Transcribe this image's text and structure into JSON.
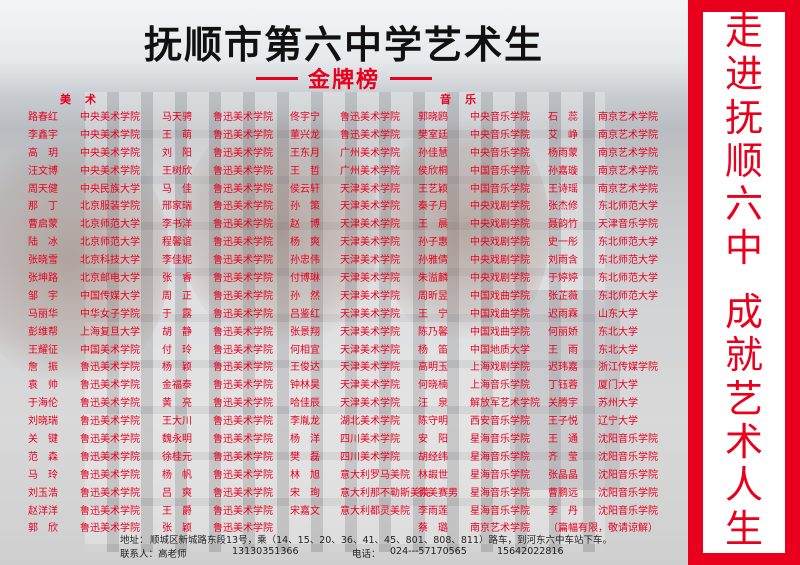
{
  "title": "抚顺市第六中学艺术生",
  "subtitle": "金牌榜",
  "sections": {
    "art": "美术",
    "music": "音乐"
  },
  "side_slogan": [
    "走",
    "进",
    "抚",
    "顺",
    "六",
    "中",
    "",
    "成",
    "就",
    "艺",
    "术",
    "人",
    "生"
  ],
  "rows": [
    [
      "路春红",
      "中央美术学院",
      "马天骋",
      "鲁迅美术学院",
      "佟宇宁",
      "鲁迅美术学院",
      "郭晓鸥",
      "中央音乐学院",
      "石　蕊",
      "南京艺术学院"
    ],
    [
      "李鑫宇",
      "中央美术学院",
      "王　萌",
      "鲁迅美术学院",
      "董兴龙",
      "鲁迅美术学院",
      "樊室廷",
      "中央音乐学院",
      "艾　峥",
      "南京艺术学院"
    ],
    [
      "高　玥",
      "中央美术学院",
      "刘　阳",
      "鲁迅美术学院",
      "王东月",
      "广州美术学院",
      "孙佳慧",
      "中央音乐学院",
      "杨雨蒙",
      "南京艺术学院"
    ],
    [
      "汪文博",
      "中央美术学院",
      "王树欣",
      "鲁迅美术学院",
      "王　哲",
      "广州美术学院",
      "侯欣桐",
      "中国音乐学院",
      "孙嘉璇",
      "南京艺术学院"
    ],
    [
      "周天健",
      "中央民族大学",
      "马　佳",
      "鲁迅美术学院",
      "侯云轩",
      "天津美术学院",
      "王艺颖",
      "中国音乐学院",
      "王诗瑶",
      "南京艺术学院"
    ],
    [
      "那　丁",
      "北京服装学院",
      "邢家瑞",
      "鲁迅美术学院",
      "孙　策",
      "天津美术学院",
      "秦子月",
      "中央戏剧学院",
      "张杰修",
      "东北师范大学"
    ],
    [
      "曹启蒙",
      "北京师范大学",
      "李书洋",
      "鲁迅美术学院",
      "赵　博",
      "天津美术学院",
      "王　晨",
      "中央戏剧学院",
      "聂韵竹",
      "天津音乐学院"
    ],
    [
      "陆　冰",
      "北京师范大学",
      "程馨谊",
      "鲁迅美术学院",
      "杨　爽",
      "天津美术学院",
      "孙子惠",
      "中央戏剧学院",
      "史一彤",
      "东北师范大学"
    ],
    [
      "张晓雪",
      "北京科技大学",
      "李佳妮",
      "鲁迅美术学院",
      "孙忠伟",
      "天津美术学院",
      "孙雅倩",
      "中央戏剧学院",
      "刘雨含",
      "东北师范大学"
    ],
    [
      "张坤路",
      "北京邮电大学",
      "张　睿",
      "鲁迅美术学院",
      "付博琳",
      "天津美术学院",
      "朱溢麟",
      "中央戏剧学院",
      "于婷婷",
      "东北师范大学"
    ],
    [
      "邹　宇",
      "中国传媒大学",
      "周　正",
      "鲁迅美术学院",
      "孙　然",
      "天津美术学院",
      "周昕昱",
      "中国戏曲学院",
      "张芷薇",
      "东北师范大学"
    ],
    [
      "马丽华",
      "中华女子学院",
      "于　露",
      "鲁迅美术学院",
      "吕鉴红",
      "天津美术学院",
      "王　宁",
      "中国戏曲学院",
      "迟雨霖",
      "山东大学"
    ],
    [
      "彭维帮",
      "上海复旦大学",
      "胡　静",
      "鲁迅美术学院",
      "张景翔",
      "天津美术学院",
      "陈乃馨",
      "中国戏曲学院",
      "何丽娇",
      "东北大学"
    ],
    [
      "王耀征",
      "中国美术学院",
      "付　玲",
      "鲁迅美术学院",
      "何相宜",
      "天津美术学院",
      "杨　笛",
      "中国地质大学",
      "王　雨",
      "东北大学"
    ],
    [
      "詹　振",
      "鲁迅美术学院",
      "杨　颖",
      "鲁迅美术学院",
      "王俊达",
      "天津美术学院",
      "高明玉",
      "上海戏剧学院",
      "迟玮嘉",
      "浙江传媒学院"
    ],
    [
      "袁　帅",
      "鲁迅美术学院",
      "金福泰",
      "鲁迅美术学院",
      "钟林昊",
      "天津美术学院",
      "何晓楠",
      "上海音乐学院",
      "丁钰蓉",
      "厦门大学"
    ],
    [
      "于海伦",
      "鲁迅美术学院",
      "黄　亮",
      "鲁迅美术学院",
      "哈佳辰",
      "天津美术学院",
      "汪　泉",
      "解放军艺术学院",
      "关腾宇",
      "苏州大学"
    ],
    [
      "刘晓瑞",
      "鲁迅美术学院",
      "王大川",
      "鲁迅美术学院",
      "李胤龙",
      "湖北美术学院",
      "陈守明",
      "西安音乐学院",
      "王子悦",
      "辽宁大学"
    ],
    [
      "关　键",
      "鲁迅美术学院",
      "魏永明",
      "鲁迅美术学院",
      "杨　洋",
      "四川美术学院",
      "安　阳",
      "星海音乐学院",
      "王　通",
      "沈阳音乐学院"
    ],
    [
      "范　森",
      "鲁迅美术学院",
      "徐桂元",
      "鲁迅美术学院",
      "樊　磊",
      "四川美术学院",
      "胡经纬",
      "星海音乐学院",
      "齐　莹",
      "沈阳音乐学院"
    ],
    [
      "马　玲",
      "鲁迅美术学院",
      "杨　帆",
      "鲁迅美术学院",
      "林　旭",
      "意大利罗马美院",
      "林嘏世",
      "星海音乐学院",
      "张晶晶",
      "沈阳音乐学院"
    ],
    [
      "刘玉浩",
      "鲁迅美术学院",
      "吕　爽",
      "鲁迅美术学院",
      "宋　珣",
      "意大利那不勒斯美院",
      "徐美赛男",
      "星海音乐学院",
      "曹鹏远",
      "沈阳音乐学院"
    ],
    [
      "赵洋洋",
      "鲁迅美术学院",
      "王　爵",
      "鲁迅美术学院",
      "宋嘉文",
      "意大利都灵美院",
      "李雨莲",
      "星海音乐学院",
      "李　丹",
      "沈阳音乐学院"
    ],
    [
      "郭　欣",
      "鲁迅美术学院",
      "张　颖",
      "鲁迅美术学院",
      "",
      "",
      "蔡　璐",
      "南京艺术学院",
      "（篇幅有限，敬请谅解）",
      ""
    ]
  ],
  "footer": {
    "address_label": "地址：",
    "address": "顺城区新城路东段13号，乘（14、15、20、36、41、45、801、808、811）路车，到河东六中车站下车。",
    "contact_label": "联系人：高老师",
    "phone1": "13130351366",
    "tel_label": "电话：",
    "tel": "024---57170565",
    "phone2": "15642022816"
  },
  "colors": {
    "accent": "#e8001d",
    "title": "#111111"
  }
}
